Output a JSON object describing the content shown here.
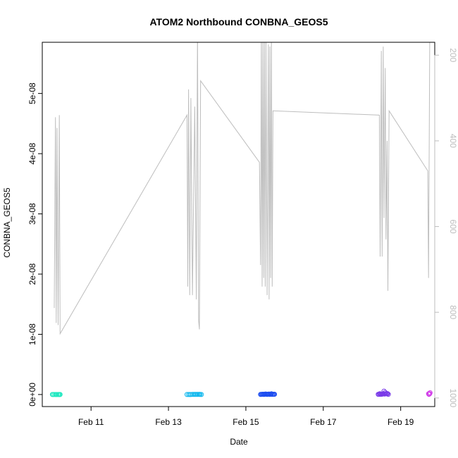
{
  "chart_data": {
    "type": "scatter",
    "title": "ATOM2 Northbound CONBNA_GEOS5",
    "xlabel": "Date",
    "ylabel": "CONBNA_GEOS5",
    "ylabel_right": "",
    "x_domain_days": [
      9.74,
      19.88
    ],
    "ylim": [
      -2e-09,
      5.85e-08
    ],
    "y2lim_reversed": [
      1020,
      170
    ],
    "x_ticks": [
      {
        "value": 11,
        "label": "Feb 11"
      },
      {
        "value": 13,
        "label": "Feb 13"
      },
      {
        "value": 15,
        "label": "Feb 15"
      },
      {
        "value": 17,
        "label": "Feb 17"
      },
      {
        "value": 19,
        "label": "Feb 19"
      }
    ],
    "y_ticks": [
      {
        "value": 0,
        "label": "0e+00"
      },
      {
        "value": 1e-08,
        "label": "1e-08"
      },
      {
        "value": 2e-08,
        "label": "2e-08"
      },
      {
        "value": 3e-08,
        "label": "3e-08"
      },
      {
        "value": 4e-08,
        "label": "4e-08"
      },
      {
        "value": 5e-08,
        "label": "5e-08"
      }
    ],
    "y2_ticks": [
      {
        "value": 200,
        "label": "200"
      },
      {
        "value": 400,
        "label": "400"
      },
      {
        "value": 600,
        "label": "600"
      },
      {
        "value": 800,
        "label": "800"
      },
      {
        "value": 1000,
        "label": "1000"
      }
    ],
    "pressure_line_color": "#bdbdbd",
    "pressure_series": [
      [
        10.05,
        790
      ],
      [
        10.08,
        345
      ],
      [
        10.1,
        825
      ],
      [
        10.12,
        370
      ],
      [
        10.15,
        830
      ],
      [
        10.18,
        340
      ],
      [
        10.2,
        850
      ],
      [
        13.48,
        340
      ],
      [
        13.5,
        740
      ],
      [
        13.52,
        280
      ],
      [
        13.55,
        760
      ],
      [
        13.58,
        300
      ],
      [
        13.62,
        760
      ],
      [
        13.68,
        320
      ],
      [
        13.72,
        770
      ],
      [
        13.75,
        140
      ],
      [
        13.78,
        820
      ],
      [
        13.8,
        840
      ],
      [
        13.83,
        260
      ],
      [
        15.35,
        450
      ],
      [
        15.38,
        690
      ],
      [
        15.4,
        150
      ],
      [
        15.42,
        740
      ],
      [
        15.44,
        170
      ],
      [
        15.46,
        720
      ],
      [
        15.48,
        160
      ],
      [
        15.5,
        740
      ],
      [
        15.52,
        170
      ],
      [
        15.55,
        760
      ],
      [
        15.58,
        175
      ],
      [
        15.6,
        770
      ],
      [
        15.62,
        180
      ],
      [
        15.64,
        720
      ],
      [
        15.66,
        160
      ],
      [
        15.68,
        740
      ],
      [
        15.7,
        330
      ],
      [
        18.45,
        340
      ],
      [
        18.47,
        670
      ],
      [
        18.5,
        190
      ],
      [
        18.52,
        670
      ],
      [
        18.55,
        180
      ],
      [
        18.57,
        580
      ],
      [
        18.6,
        230
      ],
      [
        18.62,
        630
      ],
      [
        18.65,
        400
      ],
      [
        18.67,
        750
      ],
      [
        18.7,
        330
      ],
      [
        19.7,
        470
      ],
      [
        19.72,
        720
      ],
      [
        19.75,
        160
      ],
      [
        19.78,
        120
      ]
    ],
    "series": [
      {
        "color": "#1fe8c0",
        "points": [
          [
            10.0,
            2e-12
          ],
          [
            10.02,
            1e-12
          ],
          [
            10.05,
            0.0
          ],
          [
            10.08,
            1e-12
          ],
          [
            10.1,
            3e-12
          ],
          [
            10.12,
            0.0
          ],
          [
            10.15,
            1e-12
          ],
          [
            10.17,
            0.0
          ],
          [
            10.19,
            2e-12
          ],
          [
            10.2,
            1e-12
          ]
        ]
      },
      {
        "color": "#12b8ee",
        "points": [
          [
            13.48,
            2e-12
          ],
          [
            13.52,
            4e-12
          ],
          [
            13.55,
            3e-12
          ],
          [
            13.58,
            6e-12
          ],
          [
            13.62,
            7e-12
          ],
          [
            13.65,
            1.2e-11
          ],
          [
            13.68,
            1.6e-11
          ],
          [
            13.7,
            2e-11
          ],
          [
            13.73,
            2.3e-11
          ],
          [
            13.75,
            1.5e-11
          ],
          [
            13.78,
            2.5e-11
          ],
          [
            13.8,
            2.9e-11
          ],
          [
            13.82,
            8e-12
          ],
          [
            13.85,
            5e-12
          ]
        ]
      },
      {
        "color": "#1e4ef0",
        "points": [
          [
            15.38,
            1.7e-11
          ],
          [
            15.4,
            2.5e-11
          ],
          [
            15.42,
            3.5e-11
          ],
          [
            15.44,
            5.3e-11
          ],
          [
            15.46,
            2.2e-11
          ],
          [
            15.48,
            2.8e-11
          ],
          [
            15.5,
            7.2e-11
          ],
          [
            15.52,
            7.8e-11
          ],
          [
            15.54,
            3.1e-11
          ],
          [
            15.56,
            3.8e-11
          ],
          [
            15.58,
            6.5e-11
          ],
          [
            15.6,
            8.6e-11
          ],
          [
            15.62,
            2.4e-11
          ],
          [
            15.64,
            4.3e-11
          ],
          [
            15.66,
            1.22e-10
          ],
          [
            15.68,
            2.9e-11
          ],
          [
            15.7,
            4.6e-11
          ],
          [
            15.72,
            3.8e-11
          ],
          [
            15.74,
            4.7e-11
          ],
          [
            15.45,
            3.2e-11
          ],
          [
            15.55,
            1.9e-11
          ],
          [
            15.65,
            3.5e-11
          ]
        ]
      },
      {
        "color": "#7a3be8",
        "points": [
          [
            18.42,
            3.5e-11
          ],
          [
            18.44,
            4.2e-11
          ],
          [
            18.46,
            1.41e-10
          ],
          [
            18.48,
            8e-11
          ],
          [
            18.5,
            5.7e-11
          ],
          [
            18.52,
            8.2e-11
          ],
          [
            18.54,
            1.1e-10
          ],
          [
            18.55,
            1.4e-10
          ],
          [
            18.57,
            5.67e-10
          ],
          [
            18.58,
            6.9e-11
          ],
          [
            18.6,
            1.18e-10
          ],
          [
            18.6,
            3.48e-10
          ],
          [
            18.62,
            1.41e-10
          ],
          [
            18.64,
            1.35e-10
          ],
          [
            18.65,
            1.13e-10
          ],
          [
            18.66,
            1.56e-10
          ],
          [
            18.68,
            4e-11
          ],
          [
            18.5,
            4.8e-11
          ],
          [
            18.52,
            6.2e-11
          ],
          [
            18.47,
            3.6e-11
          ]
        ]
      },
      {
        "color": "#d13de8",
        "points": [
          [
            19.72,
            1.3e-10
          ],
          [
            19.74,
            9e-11
          ],
          [
            19.75,
            1.45e-10
          ],
          [
            19.76,
            2.93e-10
          ],
          [
            19.73,
            3e-11
          ]
        ]
      }
    ]
  }
}
